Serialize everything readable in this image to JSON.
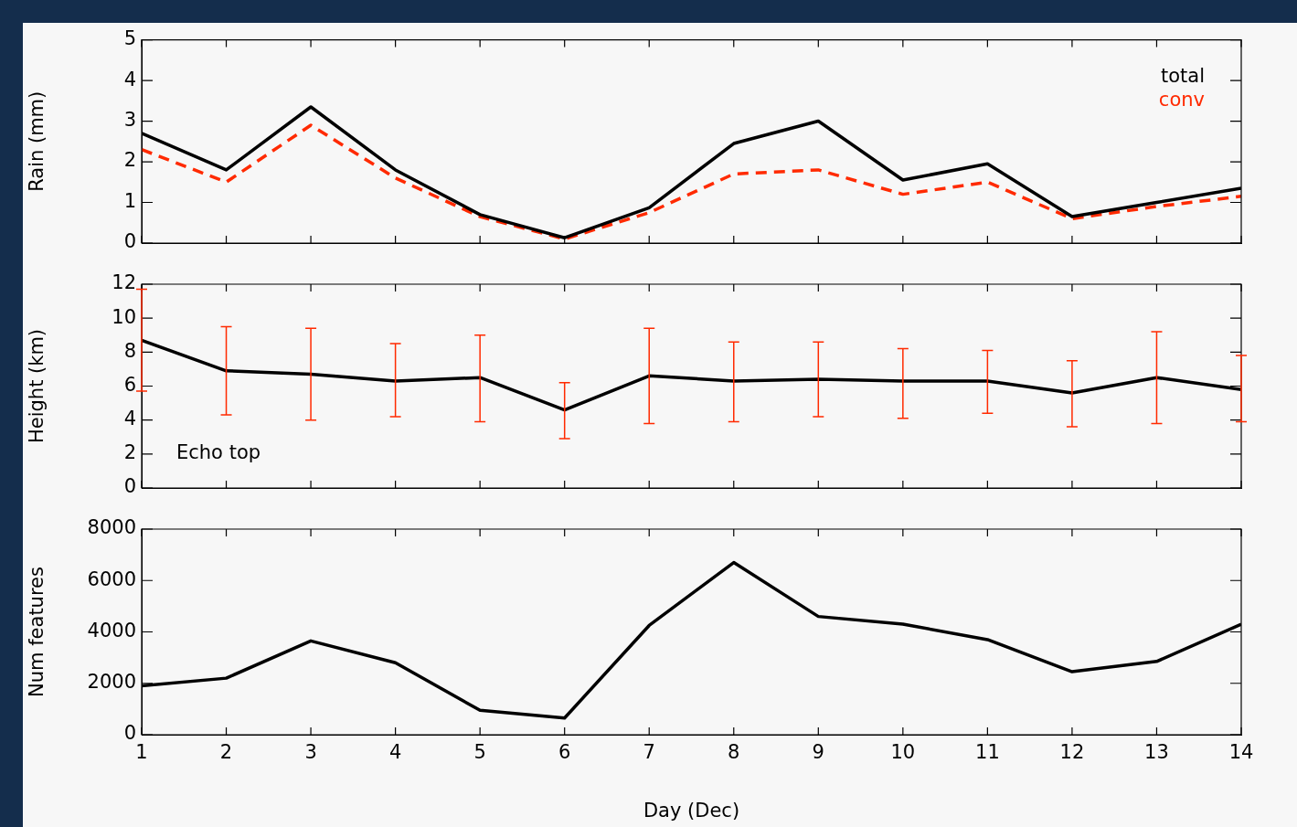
{
  "chart_data": [
    {
      "type": "line",
      "ylabel": "Rain (mm)",
      "x": [
        1,
        2,
        3,
        4,
        5,
        6,
        7,
        8,
        9,
        10,
        11,
        12,
        13,
        14
      ],
      "xlim": [
        1,
        14
      ],
      "xticks": [
        1,
        2,
        3,
        4,
        5,
        6,
        7,
        8,
        9,
        10,
        11,
        12,
        13,
        14
      ],
      "ylim": [
        0,
        5
      ],
      "yticks": [
        0,
        1,
        2,
        3,
        4,
        5
      ],
      "tick_labels": "y",
      "grid": false,
      "legend": "top right",
      "marker": "none",
      "series": [
        {
          "name": "total",
          "color": "#000000",
          "line_style": "solid",
          "values": [
            2.7,
            1.8,
            3.35,
            1.8,
            0.7,
            0.13,
            0.87,
            2.45,
            3.0,
            1.55,
            1.95,
            0.65,
            1.0,
            1.35
          ]
        },
        {
          "name": "conv",
          "color": "#ff2a00",
          "line_style": "dashed",
          "values": [
            2.3,
            1.5,
            2.9,
            1.6,
            0.65,
            0.1,
            0.75,
            1.7,
            1.8,
            1.2,
            1.5,
            0.6,
            0.9,
            1.15
          ]
        }
      ]
    },
    {
      "type": "line",
      "ylabel": "Height (km)",
      "x": [
        1,
        2,
        3,
        4,
        5,
        6,
        7,
        8,
        9,
        10,
        11,
        12,
        13,
        14
      ],
      "xlim": [
        1,
        14
      ],
      "xticks": [
        1,
        2,
        3,
        4,
        5,
        6,
        7,
        8,
        9,
        10,
        11,
        12,
        13,
        14
      ],
      "ylim": [
        0,
        12
      ],
      "yticks": [
        0,
        2,
        4,
        6,
        8,
        10,
        12
      ],
      "tick_labels": "y",
      "grid": false,
      "legend": false,
      "marker": "none",
      "annotations": [
        "Echo top"
      ],
      "series": [
        {
          "color": "#000000",
          "line_style": "solid",
          "values": [
            8.7,
            6.9,
            6.7,
            6.3,
            6.5,
            4.6,
            6.6,
            6.3,
            6.4,
            6.3,
            6.3,
            5.6,
            6.5,
            5.8
          ],
          "errors": [
            [
              5.7,
              11.7
            ],
            [
              4.3,
              9.5
            ],
            [
              4.0,
              9.4
            ],
            [
              4.2,
              8.5
            ],
            [
              3.9,
              9.0
            ],
            [
              2.9,
              6.2
            ],
            [
              3.8,
              9.4
            ],
            [
              3.9,
              8.6
            ],
            [
              4.2,
              8.6
            ],
            [
              4.1,
              8.2
            ],
            [
              4.4,
              8.1
            ],
            [
              3.6,
              7.5
            ],
            [
              3.8,
              9.2
            ],
            [
              3.9,
              7.8
            ]
          ]
        }
      ]
    },
    {
      "type": "line",
      "xlabel": "Day (Dec)",
      "ylabel": "Num features",
      "x": [
        1,
        2,
        3,
        4,
        5,
        6,
        7,
        8,
        9,
        10,
        11,
        12,
        13,
        14
      ],
      "xlim": [
        1,
        14
      ],
      "xticks": [
        1,
        2,
        3,
        4,
        5,
        6,
        7,
        8,
        9,
        10,
        11,
        12,
        13,
        14
      ],
      "ylim": [
        0,
        8000
      ],
      "yticks": [
        0,
        2000,
        4000,
        6000,
        8000
      ],
      "grid": false,
      "legend": false,
      "marker": "none",
      "series": [
        {
          "color": "#000000",
          "line_style": "solid",
          "values": [
            1900,
            2200,
            3650,
            2800,
            950,
            650,
            4250,
            6700,
            4600,
            4300,
            3700,
            2450,
            2850,
            4300
          ]
        }
      ]
    }
  ]
}
